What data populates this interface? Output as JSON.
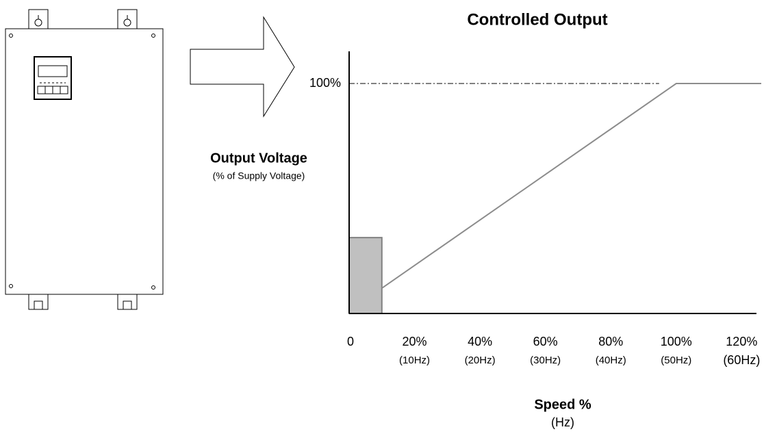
{
  "chart_data": {
    "type": "line",
    "title": "Controlled Output",
    "y_label": "Output Voltage",
    "y_sublabel": "(% of Supply Voltage)",
    "x_label": "Speed %",
    "x_sublabel": "(Hz)",
    "xlim": [
      0,
      126
    ],
    "ylim": [
      0,
      114
    ],
    "xticks": [
      0,
      {
        "value": 20,
        "label": "20%"
      },
      {
        "value": 40,
        "label": "40%"
      },
      {
        "value": 60,
        "label": "60%"
      },
      {
        "value": 80,
        "label": "80%"
      },
      {
        "value": 100,
        "label": "100%"
      },
      {
        "value": 120,
        "label": "120%"
      }
    ],
    "xtick_sublabels": [
      null,
      "(10Hz)",
      "(20Hz)",
      "(30Hz)",
      "(40Hz)",
      "(50Hz)",
      "(60Hz)"
    ],
    "yticks": [
      {
        "value": 100,
        "label": "100%"
      }
    ],
    "series": [
      {
        "color": "#8c8c8c",
        "x": [
          10,
          100,
          126
        ],
        "values": [
          11,
          100,
          100
        ]
      }
    ],
    "shaded_region": {
      "x": [
        0,
        10
      ],
      "value": 33,
      "color": "#c0c0c0"
    }
  }
}
